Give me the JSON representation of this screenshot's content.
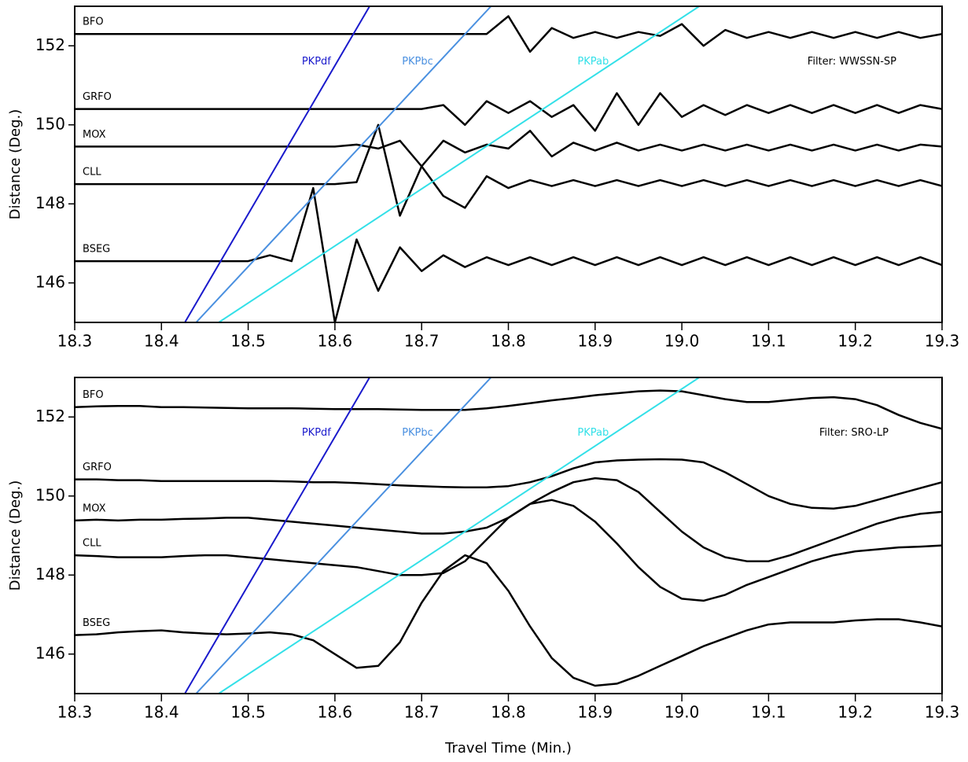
{
  "chart_data": [
    {
      "type": "line",
      "ylabel": "Distance (Deg.)",
      "annotation": "Filter: WWSSN-SP",
      "xlim": [
        18.3,
        19.3
      ],
      "ylim": [
        145,
        153
      ],
      "xticks": [
        18.3,
        18.4,
        18.5,
        18.6,
        18.7,
        18.8,
        18.9,
        {
          "value": 19,
          "label": "19.0"
        },
        19.1,
        19.2,
        19.3
      ],
      "yticks": [
        146,
        148,
        150,
        152
      ],
      "x": [
        18.3,
        18.325,
        18.35,
        18.375,
        18.4,
        18.425,
        18.45,
        18.475,
        18.5,
        18.525,
        18.55,
        18.575,
        18.6,
        18.625,
        18.65,
        18.675,
        18.7,
        18.725,
        18.75,
        18.775,
        18.8,
        18.825,
        18.85,
        18.875,
        18.9,
        18.925,
        18.95,
        18.975,
        19,
        19.025,
        19.05,
        19.075,
        19.1,
        19.125,
        19.15,
        19.175,
        19.2,
        19.225,
        19.25,
        19.275,
        19.3
      ],
      "series": [
        {
          "name": "BFO",
          "color": "#000000",
          "values": [
            152.3,
            152.3,
            152.3,
            152.3,
            152.3,
            152.3,
            152.3,
            152.3,
            152.3,
            152.3,
            152.3,
            152.3,
            152.3,
            152.3,
            152.3,
            152.3,
            152.3,
            152.3,
            152.3,
            152.3,
            152.75,
            151.85,
            152.45,
            152.2,
            152.35,
            152.2,
            152.35,
            152.25,
            152.55,
            152.0,
            152.4,
            152.2,
            152.35,
            152.2,
            152.35,
            152.2,
            152.35,
            152.2,
            152.35,
            152.2,
            152.3
          ]
        },
        {
          "name": "GRFO",
          "color": "#000000",
          "values": [
            150.4,
            150.4,
            150.4,
            150.4,
            150.4,
            150.4,
            150.4,
            150.4,
            150.4,
            150.4,
            150.4,
            150.4,
            150.4,
            150.4,
            150.4,
            150.4,
            150.4,
            150.5,
            150.0,
            150.6,
            150.3,
            150.6,
            150.2,
            150.5,
            149.85,
            150.8,
            150.0,
            150.8,
            150.2,
            150.5,
            150.25,
            150.5,
            150.3,
            150.5,
            150.3,
            150.5,
            150.3,
            150.5,
            150.3,
            150.5,
            150.4
          ]
        },
        {
          "name": "MOX",
          "color": "#000000",
          "values": [
            149.45,
            149.45,
            149.45,
            149.45,
            149.45,
            149.45,
            149.45,
            149.45,
            149.45,
            149.45,
            149.45,
            149.45,
            149.45,
            149.5,
            149.4,
            149.6,
            148.95,
            149.6,
            149.3,
            149.5,
            149.4,
            149.85,
            149.2,
            149.55,
            149.35,
            149.55,
            149.35,
            149.5,
            149.35,
            149.5,
            149.35,
            149.5,
            149.35,
            149.5,
            149.35,
            149.5,
            149.35,
            149.5,
            149.35,
            149.5,
            149.45
          ]
        },
        {
          "name": "CLL",
          "color": "#000000",
          "values": [
            148.5,
            148.5,
            148.5,
            148.5,
            148.5,
            148.5,
            148.5,
            148.5,
            148.5,
            148.5,
            148.5,
            148.5,
            148.5,
            148.55,
            150.0,
            147.7,
            148.95,
            148.2,
            147.9,
            148.7,
            148.4,
            148.6,
            148.45,
            148.6,
            148.45,
            148.6,
            148.45,
            148.6,
            148.45,
            148.6,
            148.45,
            148.6,
            148.45,
            148.6,
            148.45,
            148.6,
            148.45,
            148.6,
            148.45,
            148.6,
            148.45
          ]
        },
        {
          "name": "BSEG",
          "color": "#000000",
          "values": [
            146.55,
            146.55,
            146.55,
            146.55,
            146.55,
            146.55,
            146.55,
            146.55,
            146.55,
            146.7,
            146.55,
            148.4,
            145.0,
            147.1,
            145.8,
            146.9,
            146.3,
            146.7,
            146.4,
            146.65,
            146.45,
            146.65,
            146.45,
            146.65,
            146.45,
            146.65,
            146.45,
            146.65,
            146.45,
            146.65,
            146.45,
            146.65,
            146.45,
            146.65,
            146.45,
            146.65,
            146.45,
            146.65,
            146.45,
            146.65,
            146.45
          ]
        },
        {
          "name": "PKPdf",
          "color": "#1a1acc",
          "x": [
            18.427,
            18.64
          ],
          "values": [
            145,
            153
          ]
        },
        {
          "name": "PKPbc",
          "color": "#4a90e0",
          "x": [
            18.44,
            18.78
          ],
          "values": [
            145,
            153
          ]
        },
        {
          "name": "PKPab",
          "color": "#33e0e8",
          "x": [
            18.466,
            19.02
          ],
          "values": [
            145,
            153
          ]
        }
      ]
    },
    {
      "type": "line",
      "ylabel": "Distance (Deg.)",
      "xlabel": "Travel Time (Min.)",
      "annotation": "Filter: SRO-LP",
      "xlim": [
        18.3,
        19.3
      ],
      "ylim": [
        145,
        153
      ],
      "xticks": [
        18.3,
        18.4,
        18.5,
        18.6,
        18.7,
        18.8,
        18.9,
        {
          "value": 19,
          "label": "19.0"
        },
        19.1,
        19.2,
        19.3
      ],
      "yticks": [
        146,
        148,
        150,
        152
      ],
      "x": [
        18.3,
        18.325,
        18.35,
        18.375,
        18.4,
        18.425,
        18.45,
        18.475,
        18.5,
        18.525,
        18.55,
        18.575,
        18.6,
        18.625,
        18.65,
        18.675,
        18.7,
        18.725,
        18.75,
        18.775,
        18.8,
        18.825,
        18.85,
        18.875,
        18.9,
        18.925,
        18.95,
        18.975,
        19,
        19.025,
        19.05,
        19.075,
        19.1,
        19.125,
        19.15,
        19.175,
        19.2,
        19.225,
        19.25,
        19.275,
        19.3
      ],
      "series": [
        {
          "name": "BFO",
          "color": "#000000",
          "values": [
            152.25,
            152.27,
            152.28,
            152.28,
            152.25,
            152.25,
            152.24,
            152.23,
            152.22,
            152.22,
            152.22,
            152.21,
            152.2,
            152.2,
            152.2,
            152.19,
            152.18,
            152.18,
            152.18,
            152.22,
            152.28,
            152.35,
            152.42,
            152.48,
            152.55,
            152.6,
            152.65,
            152.67,
            152.65,
            152.55,
            152.45,
            152.38,
            152.38,
            152.43,
            152.48,
            152.5,
            152.45,
            152.3,
            152.05,
            151.85,
            151.7
          ]
        },
        {
          "name": "GRFO",
          "color": "#000000",
          "values": [
            150.42,
            150.42,
            150.4,
            150.4,
            150.38,
            150.38,
            150.38,
            150.38,
            150.38,
            150.38,
            150.37,
            150.35,
            150.35,
            150.33,
            150.3,
            150.27,
            150.25,
            150.23,
            150.22,
            150.22,
            150.25,
            150.35,
            150.5,
            150.7,
            150.85,
            150.9,
            150.92,
            150.93,
            150.92,
            150.85,
            150.6,
            150.3,
            150.0,
            149.8,
            149.7,
            149.68,
            149.75,
            149.9,
            150.05,
            150.2,
            150.35
          ]
        },
        {
          "name": "MOX",
          "color": "#000000",
          "values": [
            149.38,
            149.4,
            149.38,
            149.4,
            149.4,
            149.42,
            149.43,
            149.45,
            149.45,
            149.4,
            149.35,
            149.3,
            149.25,
            149.2,
            149.15,
            149.1,
            149.05,
            149.05,
            149.1,
            149.2,
            149.45,
            149.8,
            150.1,
            150.35,
            150.45,
            150.4,
            150.1,
            149.6,
            149.1,
            148.7,
            148.45,
            148.35,
            148.35,
            148.5,
            148.7,
            148.9,
            149.1,
            149.3,
            149.45,
            149.55,
            149.6
          ]
        },
        {
          "name": "CLL",
          "color": "#000000",
          "values": [
            148.5,
            148.48,
            148.45,
            148.45,
            148.45,
            148.48,
            148.5,
            148.5,
            148.45,
            148.4,
            148.35,
            148.3,
            148.25,
            148.2,
            148.1,
            148.0,
            148.0,
            148.05,
            148.35,
            148.9,
            149.45,
            149.8,
            149.9,
            149.75,
            149.35,
            148.8,
            148.2,
            147.7,
            147.4,
            147.35,
            147.5,
            147.75,
            147.95,
            148.15,
            148.35,
            148.5,
            148.6,
            148.65,
            148.7,
            148.72,
            148.75
          ]
        },
        {
          "name": "BSEG",
          "color": "#000000",
          "values": [
            146.48,
            146.5,
            146.55,
            146.58,
            146.6,
            146.55,
            146.52,
            146.5,
            146.52,
            146.55,
            146.5,
            146.35,
            146.0,
            145.65,
            145.7,
            146.3,
            147.3,
            148.1,
            148.5,
            148.3,
            147.6,
            146.7,
            145.9,
            145.4,
            145.2,
            145.25,
            145.45,
            145.7,
            145.95,
            146.2,
            146.4,
            146.6,
            146.75,
            146.8,
            146.8,
            146.8,
            146.85,
            146.88,
            146.88,
            146.8,
            146.7
          ]
        },
        {
          "name": "PKPdf",
          "color": "#1a1acc",
          "x": [
            18.427,
            18.64
          ],
          "values": [
            145,
            153
          ]
        },
        {
          "name": "PKPbc",
          "color": "#4a90e0",
          "x": [
            18.44,
            18.78
          ],
          "values": [
            145,
            153
          ]
        },
        {
          "name": "PKPab",
          "color": "#33e0e8",
          "x": [
            18.466,
            19.02
          ],
          "values": [
            145,
            153
          ]
        }
      ]
    }
  ]
}
